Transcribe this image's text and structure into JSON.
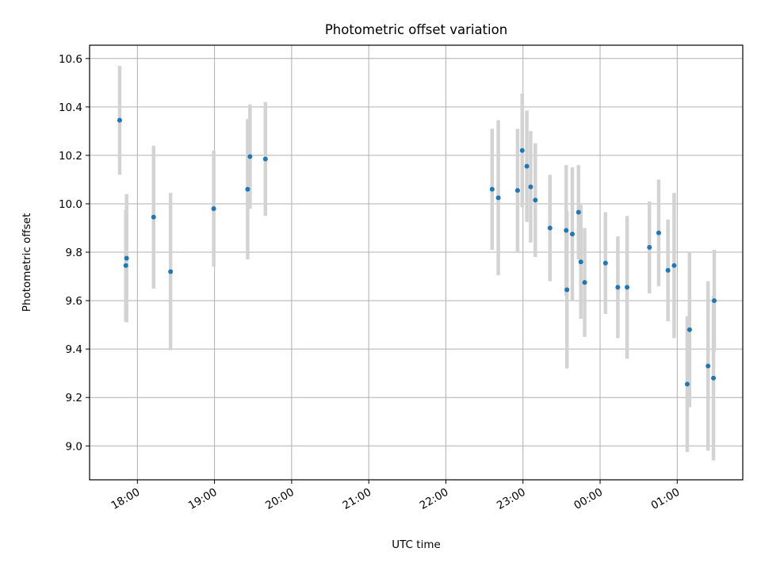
{
  "chart_data": {
    "type": "scatter",
    "title": "Photometric offset variation",
    "xlabel": "UTC time",
    "ylabel": "Photometric offset",
    "x_unit": "UTC clock time (hours after midnight of first night; values above 24 wrap past midnight)",
    "xlim": [
      17.38,
      25.85
    ],
    "ylim": [
      8.86,
      10.655
    ],
    "x_ticks": [
      {
        "value": 18,
        "label": "18:00"
      },
      {
        "value": 19,
        "label": "19:00"
      },
      {
        "value": 20,
        "label": "20:00"
      },
      {
        "value": 21,
        "label": "21:00"
      },
      {
        "value": 22,
        "label": "22:00"
      },
      {
        "value": 23,
        "label": "23:00"
      },
      {
        "value": 24,
        "label": "00:00"
      },
      {
        "value": 25,
        "label": "01:00"
      }
    ],
    "y_ticks": [
      {
        "value": 9.0,
        "label": "9.0"
      },
      {
        "value": 9.2,
        "label": "9.2"
      },
      {
        "value": 9.4,
        "label": "9.4"
      },
      {
        "value": 9.6,
        "label": "9.6"
      },
      {
        "value": 9.8,
        "label": "9.8"
      },
      {
        "value": 10.0,
        "label": "10.0"
      },
      {
        "value": 10.2,
        "label": "10.2"
      },
      {
        "value": 10.4,
        "label": "10.4"
      },
      {
        "value": 10.6,
        "label": "10.6"
      }
    ],
    "grid": true,
    "point_color": "#1f77b4",
    "errorbar_color": "#d3d3d3",
    "points": [
      {
        "x": 17.77,
        "y": 10.345,
        "yerr": 0.225
      },
      {
        "x": 17.85,
        "y": 9.745,
        "yerr": 0.23
      },
      {
        "x": 17.86,
        "y": 9.775,
        "yerr": 0.265
      },
      {
        "x": 18.21,
        "y": 9.945,
        "yerr": 0.295
      },
      {
        "x": 18.43,
        "y": 9.72,
        "yerr": 0.325
      },
      {
        "x": 18.99,
        "y": 9.98,
        "yerr": 0.24
      },
      {
        "x": 19.43,
        "y": 10.06,
        "yerr": 0.29
      },
      {
        "x": 19.46,
        "y": 10.195,
        "yerr": 0.215
      },
      {
        "x": 19.66,
        "y": 10.185,
        "yerr": 0.235
      },
      {
        "x": 22.6,
        "y": 10.06,
        "yerr": 0.25
      },
      {
        "x": 22.68,
        "y": 10.025,
        "yerr": 0.32
      },
      {
        "x": 22.93,
        "y": 10.055,
        "yerr": 0.255
      },
      {
        "x": 22.99,
        "y": 10.22,
        "yerr": 0.235
      },
      {
        "x": 23.05,
        "y": 10.155,
        "yerr": 0.23
      },
      {
        "x": 23.1,
        "y": 10.07,
        "yerr": 0.23
      },
      {
        "x": 23.16,
        "y": 10.015,
        "yerr": 0.235
      },
      {
        "x": 23.35,
        "y": 9.9,
        "yerr": 0.22
      },
      {
        "x": 23.56,
        "y": 9.89,
        "yerr": 0.27
      },
      {
        "x": 23.57,
        "y": 9.645,
        "yerr": 0.325
      },
      {
        "x": 23.64,
        "y": 9.875,
        "yerr": 0.275
      },
      {
        "x": 23.72,
        "y": 9.965,
        "yerr": 0.195
      },
      {
        "x": 23.75,
        "y": 9.76,
        "yerr": 0.235
      },
      {
        "x": 23.8,
        "y": 9.675,
        "yerr": 0.225
      },
      {
        "x": 24.07,
        "y": 9.755,
        "yerr": 0.21
      },
      {
        "x": 24.23,
        "y": 9.655,
        "yerr": 0.21
      },
      {
        "x": 24.35,
        "y": 9.655,
        "yerr": 0.295
      },
      {
        "x": 24.64,
        "y": 9.82,
        "yerr": 0.19
      },
      {
        "x": 24.76,
        "y": 9.88,
        "yerr": 0.22
      },
      {
        "x": 24.88,
        "y": 9.725,
        "yerr": 0.21
      },
      {
        "x": 24.96,
        "y": 9.745,
        "yerr": 0.3
      },
      {
        "x": 25.13,
        "y": 9.255,
        "yerr": 0.28
      },
      {
        "x": 25.16,
        "y": 9.48,
        "yerr": 0.32
      },
      {
        "x": 25.4,
        "y": 9.33,
        "yerr": 0.35
      },
      {
        "x": 25.47,
        "y": 9.28,
        "yerr": 0.34
      },
      {
        "x": 25.48,
        "y": 9.6,
        "yerr": 0.21
      }
    ]
  }
}
